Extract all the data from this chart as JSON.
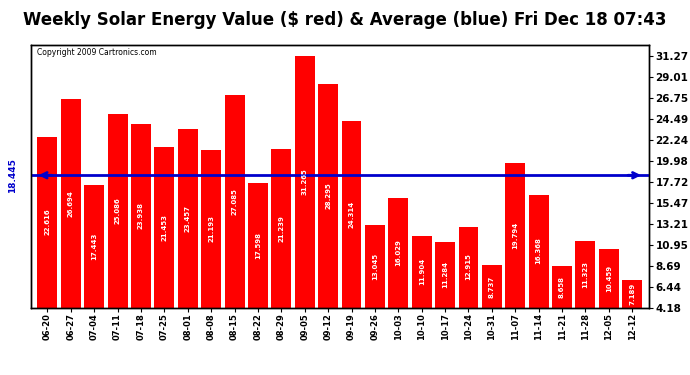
{
  "title": "Weekly Solar Energy Value ($ red) & Average (blue) Fri Dec 18 07:43",
  "copyright": "Copyright 2009 Cartronics.com",
  "categories": [
    "06-20",
    "06-27",
    "07-04",
    "07-11",
    "07-18",
    "07-25",
    "08-01",
    "08-08",
    "08-15",
    "08-22",
    "08-29",
    "09-05",
    "09-12",
    "09-19",
    "09-26",
    "10-03",
    "10-10",
    "10-17",
    "10-24",
    "10-31",
    "11-07",
    "11-14",
    "11-21",
    "11-28",
    "12-05",
    "12-12"
  ],
  "values": [
    22.616,
    26.694,
    17.443,
    25.086,
    23.938,
    21.453,
    23.457,
    21.193,
    27.085,
    17.598,
    21.239,
    31.265,
    28.295,
    24.314,
    13.045,
    16.029,
    11.904,
    11.284,
    12.915,
    8.737,
    19.794,
    16.368,
    8.658,
    11.323,
    10.459,
    7.189
  ],
  "average": 18.445,
  "bar_color": "#ff0000",
  "avg_line_color": "#0000cc",
  "background_color": "#ffffff",
  "grid_color": "#ffffff",
  "yticks": [
    4.18,
    6.44,
    8.69,
    10.95,
    13.21,
    15.47,
    17.72,
    19.98,
    22.24,
    24.49,
    26.75,
    29.01,
    31.27
  ],
  "ylim_min": 4.18,
  "ylim_max": 32.5,
  "title_fontsize": 12,
  "bar_label_fontsize": 5,
  "tick_fontsize": 7.5
}
